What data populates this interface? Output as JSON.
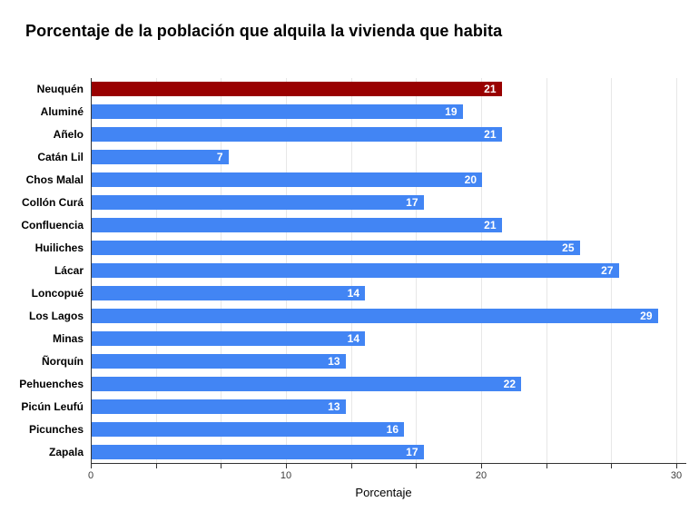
{
  "title": "Porcentaje de la población que alquila la vivienda que habita",
  "chart_data": {
    "type": "bar",
    "orientation": "horizontal",
    "title": "Porcentaje de la población que alquila la vivienda que habita",
    "xlabel": "Porcentaje",
    "ylabel": "",
    "xlim": [
      0,
      30
    ],
    "x_ticks_labeled": [
      0,
      10,
      20,
      30
    ],
    "minor_tick_step": 3.3333,
    "grid": true,
    "legend_position": "none",
    "categories": [
      "Neuquén",
      "Aluminé",
      "Añelo",
      "Catán Lil",
      "Chos Malal",
      "Collón Curá",
      "Confluencia",
      "Huiliches",
      "Lácar",
      "Loncopué",
      "Los Lagos",
      "Minas",
      "Ñorquín",
      "Pehuenches",
      "Picún Leufú",
      "Picunches",
      "Zapala"
    ],
    "values": [
      21,
      19,
      21,
      7,
      20,
      17,
      21,
      25,
      27,
      14,
      29,
      14,
      13,
      22,
      13,
      16,
      17
    ],
    "highlighted_category": "Neuquén",
    "colors": {
      "bar_default": "#4285f4",
      "bar_highlight": "#990000",
      "value_label": "#ffffff",
      "gridline": "#e7e7e7",
      "axis_line": "#333333",
      "tick_label": "#3c3c3c",
      "category_label": "#000000",
      "title": "#000000"
    }
  }
}
